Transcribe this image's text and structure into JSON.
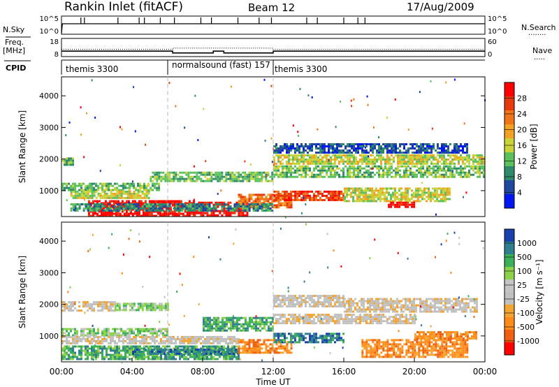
{
  "header": {
    "station": "Rankin Inlet (fitACF)",
    "beam": "Beam 12",
    "date": "17/Aug/2009"
  },
  "side_labels": {
    "nsky": "N.Sky",
    "freq_top": "Freq.",
    "freq_unit": "[MHz]",
    "cpid": "CPID",
    "nsearch": "N.Search",
    "nsearch_key": "........",
    "nave": "Nave",
    "nave_key": "....."
  },
  "cpid_segments": [
    {
      "label": "themis 3300",
      "start_hour": 0
    },
    {
      "label": "normalsound (fast) 157",
      "start_hour": 6
    },
    {
      "label": "themis 3300",
      "start_hour": 12
    }
  ],
  "colors": {
    "power": [
      "#0018f0",
      "#20489e",
      "#2e8a6a",
      "#5cc15c",
      "#c8d43a",
      "#f2a223",
      "#f07418",
      "#e8380e",
      "#ff0000"
    ],
    "velocity": [
      "#ff0000",
      "#f06010",
      "#ff8c1a",
      "#f2a530",
      "#c0c0c0",
      "#c4c4c4",
      "#8ad24a",
      "#3caf5a",
      "#2f7f90",
      "#1c3fae"
    ]
  },
  "chart_data": [
    {
      "type": "line",
      "title": "N.Sky / N.Search",
      "ylabel": "N.Sky",
      "ylabel_right": "N.Search",
      "yticks": [
        "10^5",
        "10^0"
      ],
      "yticks_right": [
        "10^5",
        "10^0"
      ],
      "xlim": [
        0,
        24
      ],
      "y_level": 1.0,
      "spike_hours": [
        1.1,
        1.3,
        3.2,
        4.4,
        4.7,
        5.6,
        6.4,
        7.9,
        8.5,
        10.0,
        11.2,
        11.9,
        13.9,
        14.5,
        16.0,
        16.8,
        17.2
      ]
    },
    {
      "type": "line",
      "ylabel": "Freq. [MHz]",
      "ylabel_right": "Nave",
      "yticks": [
        "18",
        "8"
      ],
      "yticks_right": [
        "60",
        "0"
      ],
      "xlim": [
        0,
        24
      ],
      "freq_mhz": [
        {
          "from": 0,
          "to": 6.3,
          "value": 11
        },
        {
          "from": 6.3,
          "to": 8.6,
          "value": 10
        },
        {
          "from": 8.6,
          "to": 9.2,
          "value": 11
        },
        {
          "from": 9.2,
          "to": 12,
          "value": 10
        },
        {
          "from": 12,
          "to": 24,
          "value": 11
        }
      ],
      "nave": [
        {
          "from": 0,
          "to": 6.3,
          "value": 24
        },
        {
          "from": 6.3,
          "to": 12,
          "value": 28
        },
        {
          "from": 12,
          "to": 24,
          "value": 24
        }
      ]
    },
    {
      "type": "heatmap",
      "title": "Power",
      "ylabel": "Slant Range [km]",
      "xlim": [
        0,
        24
      ],
      "ylim": [
        180,
        4600
      ],
      "yticks": [
        1000,
        2000,
        3000,
        4000
      ],
      "colorbar_label": "Power [dB]",
      "colorbar_ticks": [
        "28",
        "24",
        "20",
        "16",
        "12",
        "8",
        "4"
      ],
      "colorbar_range": [
        0,
        32
      ],
      "bands": [
        {
          "t_start": 0.0,
          "t_end": 0.7,
          "r_start": 1800,
          "r_end": 2050,
          "level": 3
        },
        {
          "t_start": 0.0,
          "t_end": 5.5,
          "r_start": 1050,
          "r_end": 1250,
          "level": 3
        },
        {
          "t_start": 0.5,
          "t_end": 5.0,
          "r_start": 800,
          "r_end": 1000,
          "level": 4
        },
        {
          "t_start": 1.5,
          "t_end": 7.5,
          "r_start": 200,
          "r_end": 700,
          "level": 8
        },
        {
          "t_start": 7.5,
          "t_end": 10.5,
          "r_start": 200,
          "r_end": 650,
          "level": 8
        },
        {
          "t_start": 5.0,
          "t_end": 12.0,
          "r_start": 1300,
          "r_end": 1600,
          "level": 3
        },
        {
          "t_start": 10.0,
          "t_end": 13.0,
          "r_start": 500,
          "r_end": 900,
          "level": 6
        },
        {
          "t_start": 12.0,
          "t_end": 16.0,
          "r_start": 700,
          "r_end": 1000,
          "level": 7
        },
        {
          "t_start": 16.0,
          "t_end": 22.0,
          "r_start": 700,
          "r_end": 1100,
          "level": 4
        },
        {
          "t_start": 18.5,
          "t_end": 20.0,
          "r_start": 500,
          "r_end": 650,
          "level": 8
        },
        {
          "t_start": 12.0,
          "t_end": 24.0,
          "r_start": 1450,
          "r_end": 1800,
          "level": 3
        },
        {
          "t_start": 12.0,
          "t_end": 24.0,
          "r_start": 1850,
          "r_end": 2150,
          "level": 4
        },
        {
          "t_start": 0.5,
          "t_end": 12.0,
          "r_start": 400,
          "r_end": 600,
          "level": 2
        },
        {
          "t_start": 12.0,
          "t_end": 23.0,
          "r_start": 2200,
          "r_end": 2500,
          "level": 1
        }
      ]
    },
    {
      "type": "heatmap",
      "title": "Velocity",
      "ylabel": "Slant Range [km]",
      "xlabel": "Time UT",
      "xlim": [
        0,
        24
      ],
      "ylim": [
        180,
        4600
      ],
      "yticks": [
        1000,
        2000,
        3000,
        4000
      ],
      "xticks": [
        "00:00",
        "04:00",
        "08:00",
        "12:00",
        "16:00",
        "20:00",
        "00:00"
      ],
      "colorbar_label": "Velocity [m s⁻¹]",
      "colorbar_ticks": [
        "1000",
        "500",
        "100",
        "25",
        "-25",
        "-100",
        "-500",
        "-1000"
      ],
      "bands": [
        {
          "t_start": 0.0,
          "t_end": 3.0,
          "r_start": 1800,
          "r_end": 2100,
          "level": 4
        },
        {
          "t_start": 3.0,
          "t_end": 6.0,
          "r_start": 1800,
          "r_end": 2050,
          "level": 6
        },
        {
          "t_start": 0.0,
          "t_end": 6.0,
          "r_start": 1000,
          "r_end": 1250,
          "level": 6
        },
        {
          "t_start": 0.0,
          "t_end": 10.0,
          "r_start": 800,
          "r_end": 1000,
          "level": 4
        },
        {
          "t_start": 0.0,
          "t_end": 10.0,
          "r_start": 250,
          "r_end": 700,
          "level": 7
        },
        {
          "t_start": 4.0,
          "t_end": 10.0,
          "r_start": 450,
          "r_end": 600,
          "level": 8
        },
        {
          "t_start": 8.0,
          "t_end": 12.0,
          "r_start": 1200,
          "r_end": 1600,
          "level": 7
        },
        {
          "t_start": 10.0,
          "t_end": 13.0,
          "r_start": 500,
          "r_end": 900,
          "level": 2
        },
        {
          "t_start": 12.0,
          "t_end": 20.0,
          "r_start": 1400,
          "r_end": 1700,
          "level": 4
        },
        {
          "t_start": 12.0,
          "t_end": 16.0,
          "r_start": 1950,
          "r_end": 2300,
          "level": 4
        },
        {
          "t_start": 12.0,
          "t_end": 16.0,
          "r_start": 800,
          "r_end": 1100,
          "level": 8
        },
        {
          "t_start": 16.0,
          "t_end": 23.5,
          "r_start": 1800,
          "r_end": 2200,
          "level": 4
        },
        {
          "t_start": 17.0,
          "t_end": 23.0,
          "r_start": 350,
          "r_end": 900,
          "level": 2
        },
        {
          "t_start": 20.0,
          "t_end": 23.5,
          "r_start": 900,
          "r_end": 1150,
          "level": 2
        }
      ]
    }
  ]
}
